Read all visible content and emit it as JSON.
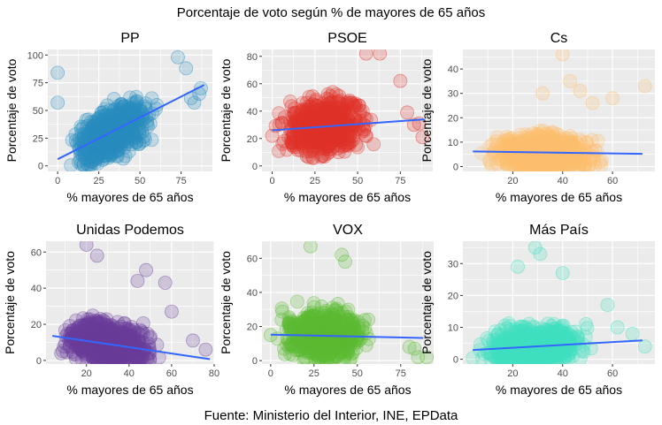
{
  "figure": {
    "title": "Porcentaje de voto según % de mayores de 65 años",
    "caption": "Fuente: Ministerio del Interior, INE, EPData"
  },
  "style": {
    "panel_background": "#EBEBEB",
    "grid_color": "#FFFFFF",
    "trend_color": "#3366FF",
    "text_color": "#000000",
    "tick_label_color": "#4D4D4D"
  },
  "chart_data": [
    {
      "type": "scatter",
      "title": "PP",
      "color": "#2B8CBE",
      "xlabel": "% mayores de 65 años",
      "ylabel": "Porcentaje de voto",
      "xlim": [
        -6,
        94
      ],
      "ylim": [
        -5,
        105
      ],
      "xticks": [
        0,
        25,
        50,
        75
      ],
      "yticks": [
        0,
        25,
        50,
        75,
        100
      ],
      "cloud": {
        "x_center": 33,
        "x_spread": 14,
        "x_range": [
          2,
          90
        ],
        "y_slope": 0.72,
        "y_intercept": 6,
        "y_spread": 15
      },
      "trend": {
        "x": [
          0,
          89
        ],
        "y": [
          6,
          73
        ]
      },
      "outliers": [
        [
          0,
          84
        ],
        [
          0,
          57
        ],
        [
          73,
          98
        ],
        [
          78,
          88
        ],
        [
          86,
          65
        ],
        [
          81,
          61
        ],
        [
          83,
          57
        ],
        [
          87,
          70
        ]
      ]
    },
    {
      "type": "scatter",
      "title": "PSOE",
      "color": "#E0322A",
      "xlabel": "% mayores de 65 años",
      "ylabel": "Porcentaje de voto",
      "xlim": [
        -6,
        94
      ],
      "ylim": [
        -4,
        85
      ],
      "xticks": [
        0,
        25,
        50,
        75
      ],
      "yticks": [
        0,
        20,
        40,
        60,
        80
      ],
      "cloud": {
        "x_center": 30,
        "x_spread": 14,
        "x_range": [
          2,
          90
        ],
        "y_slope": 0.09,
        "y_intercept": 26,
        "y_spread": 13
      },
      "trend": {
        "x": [
          0,
          89
        ],
        "y": [
          26,
          34
        ]
      },
      "outliers": [
        [
          0,
          22
        ],
        [
          55,
          82
        ],
        [
          63,
          82
        ],
        [
          83,
          30
        ],
        [
          88,
          21
        ],
        [
          86,
          31
        ],
        [
          75,
          62
        ],
        [
          79,
          39
        ]
      ]
    },
    {
      "type": "scatter",
      "title": "Cs",
      "color": "#FDBF6F",
      "xlabel": "% mayores de 65 años",
      "ylabel": "Porcentaje de voto",
      "xlim": [
        0,
        77
      ],
      "ylim": [
        -2,
        48
      ],
      "xticks": [
        20,
        40,
        60
      ],
      "yticks": [
        0,
        10,
        20,
        30,
        40
      ],
      "cloud": {
        "x_center": 32,
        "x_spread": 12,
        "x_range": [
          4,
          72
        ],
        "y_slope": -0.015,
        "y_intercept": 6.3,
        "y_spread": 5
      },
      "trend": {
        "x": [
          4,
          72
        ],
        "y": [
          6.2,
          5.2
        ]
      },
      "outliers": [
        [
          40,
          46
        ],
        [
          43,
          35
        ],
        [
          32,
          30
        ],
        [
          73,
          33
        ],
        [
          60,
          28
        ],
        [
          47,
          31
        ],
        [
          52,
          26
        ]
      ]
    },
    {
      "type": "scatter",
      "title": "Unidas Podemos",
      "color": "#6A3D9A",
      "xlabel": "% mayores de 65 años",
      "ylabel": "Porcentaje de voto",
      "xlim": [
        1,
        80
      ],
      "ylim": [
        -2,
        66
      ],
      "xticks": [
        20,
        40,
        60,
        80
      ],
      "yticks": [
        0,
        20,
        40,
        60
      ],
      "cloud": {
        "x_center": 30,
        "x_spread": 13,
        "x_range": [
          4,
          78
        ],
        "y_slope": -0.175,
        "y_intercept": 14.3,
        "y_spread": 8
      },
      "trend": {
        "x": [
          4,
          78
        ],
        "y": [
          13.6,
          0.7
        ]
      },
      "outliers": [
        [
          20,
          64
        ],
        [
          25,
          58
        ],
        [
          48,
          50
        ],
        [
          57,
          43
        ],
        [
          60,
          27
        ],
        [
          70,
          11
        ],
        [
          76,
          6
        ],
        [
          44,
          44
        ]
      ]
    },
    {
      "type": "scatter",
      "title": "VOX",
      "color": "#5DBB33",
      "xlabel": "% mayores de 65 años",
      "ylabel": "Porcentaje de voto",
      "xlim": [
        -5,
        94
      ],
      "ylim": [
        -2,
        70
      ],
      "xticks": [
        0,
        25,
        50,
        75
      ],
      "yticks": [
        0,
        20,
        40,
        60
      ],
      "cloud": {
        "x_center": 30,
        "x_spread": 14,
        "x_range": [
          2,
          90
        ],
        "y_slope": -0.02,
        "y_intercept": 15.3,
        "y_spread": 10
      },
      "trend": {
        "x": [
          0,
          88
        ],
        "y": [
          15.2,
          13.3
        ]
      },
      "outliers": [
        [
          0,
          15
        ],
        [
          23,
          67
        ],
        [
          41,
          62
        ],
        [
          43,
          58
        ],
        [
          83,
          7
        ],
        [
          85,
          2
        ],
        [
          90,
          2
        ],
        [
          80,
          8
        ]
      ]
    },
    {
      "type": "scatter",
      "title": "Más País",
      "color": "#40E0C0",
      "xlabel": "% mayores de 65 años",
      "ylabel": "Porcentaje de voto",
      "xlim": [
        0,
        77
      ],
      "ylim": [
        -1.5,
        37
      ],
      "xticks": [
        20,
        40,
        60
      ],
      "yticks": [
        0,
        10,
        20,
        30
      ],
      "cloud": {
        "x_center": 28,
        "x_spread": 12,
        "x_range": [
          4,
          72
        ],
        "y_slope": 0.045,
        "y_intercept": 2.7,
        "y_spread": 4.2
      },
      "trend": {
        "x": [
          4,
          72
        ],
        "y": [
          2.9,
          5.9
        ]
      },
      "outliers": [
        [
          29,
          35
        ],
        [
          31,
          33
        ],
        [
          22,
          29
        ],
        [
          40,
          27
        ],
        [
          58,
          17
        ],
        [
          62,
          10
        ],
        [
          68,
          8
        ],
        [
          73,
          4
        ]
      ]
    }
  ]
}
